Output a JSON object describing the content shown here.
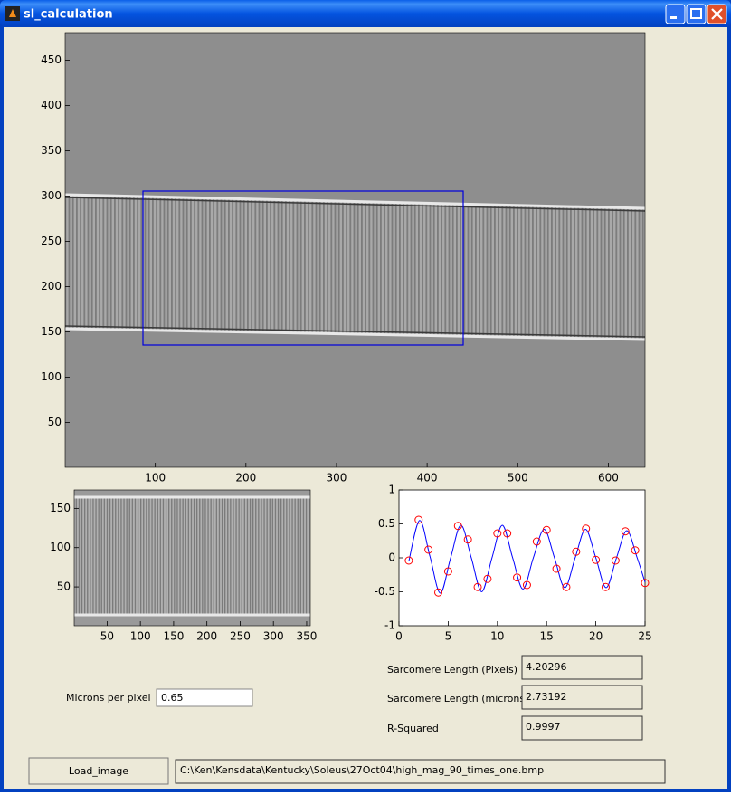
{
  "window": {
    "title": "sl_calculation"
  },
  "image_axes": {
    "xlim": [
      0.5,
      640.5
    ],
    "ylim": [
      0.5,
      480.5
    ],
    "xticks": [
      100,
      200,
      300,
      400,
      500,
      600
    ],
    "yticks": [
      50,
      100,
      150,
      200,
      250,
      300,
      350,
      400,
      450
    ]
  },
  "roi_axes": {
    "xlim": [
      0.5,
      355.5
    ],
    "ylim": [
      0.5,
      173.5
    ],
    "xticks": [
      50,
      100,
      150,
      200,
      250,
      300,
      350
    ],
    "yticks": [
      50,
      100,
      150
    ]
  },
  "chart_data": {
    "type": "line",
    "xlim": [
      0,
      25
    ],
    "ylim": [
      -1,
      1
    ],
    "xticks": [
      0,
      5,
      10,
      15,
      20,
      25
    ],
    "yticks": [
      -1,
      -0.5,
      0,
      0.5,
      1
    ],
    "series": [
      {
        "color": "#0000ff",
        "x": [
          1,
          2.1,
          3.15,
          4.2,
          5.25,
          6.3,
          7.35,
          8.4,
          9.45,
          10.5,
          11.55,
          12.6,
          13.65,
          14.75,
          15.8,
          16.85,
          17.9,
          18.95,
          20,
          21.05,
          22.1,
          23.15,
          24.2,
          25
        ],
        "values": [
          -0.05,
          0.55,
          0.02,
          -0.52,
          0,
          0.48,
          0,
          -0.5,
          0,
          0.48,
          0,
          -0.46,
          0,
          0.42,
          0,
          -0.44,
          0,
          0.42,
          0,
          -0.44,
          0,
          0.4,
          0,
          -0.36
        ]
      },
      {
        "color": "#ff0000",
        "marker": "circle",
        "x": [
          1,
          2,
          3,
          4,
          5,
          6,
          7,
          8,
          9,
          10,
          11,
          12,
          13,
          14,
          15,
          16,
          17,
          18,
          19,
          20,
          21,
          22,
          23,
          24,
          25
        ],
        "values": [
          -0.04,
          0.56,
          0.12,
          -0.51,
          -0.2,
          0.47,
          0.27,
          -0.43,
          -0.31,
          0.36,
          0.36,
          -0.29,
          -0.4,
          0.24,
          0.41,
          -0.16,
          -0.43,
          0.09,
          0.43,
          -0.03,
          -0.43,
          -0.04,
          0.39,
          0.11,
          -0.37
        ]
      }
    ]
  },
  "results": [
    {
      "label": "Sarcomere Length (Pixels)",
      "value": "4.20296"
    },
    {
      "label": "Sarcomere Length (microns)",
      "value": "2.73192"
    },
    {
      "label": "R-Squared",
      "value": "0.9997"
    }
  ],
  "calibration": {
    "label": "Microns per pixel",
    "value": "0.65"
  },
  "loader": {
    "button": "Load_image",
    "path": "C:\\Ken\\Kensdata\\Kentucky\\Soleus\\27Oct04\\high_mag_90_times_one.bmp"
  }
}
